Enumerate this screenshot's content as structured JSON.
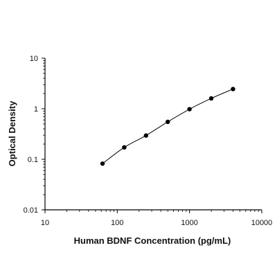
{
  "chart_data": {
    "type": "scatter",
    "title": "",
    "xlabel": "Human BDNF Concentration (pg/mL)",
    "ylabel": "Optical Density",
    "xscale": "log",
    "yscale": "log",
    "xlim": [
      10,
      10000
    ],
    "ylim": [
      0.01,
      10
    ],
    "x_ticks": [
      10,
      100,
      1000,
      10000
    ],
    "x_tick_labels": [
      "10",
      "100",
      "1000",
      "10000"
    ],
    "y_ticks": [
      0.01,
      0.1,
      1,
      10
    ],
    "y_tick_labels": [
      "0.01",
      "0.1",
      "1",
      "10"
    ],
    "grid": false,
    "legend": "none",
    "colors": {
      "points": "#000000",
      "curve": "#000000",
      "axes": "#000000",
      "background": "#ffffff"
    },
    "series": [
      {
        "x": [
          62.5,
          125,
          250,
          500,
          1000,
          2000,
          4000
        ],
        "y": [
          0.082,
          0.172,
          0.295,
          0.55,
          0.98,
          1.6,
          2.45
        ],
        "markers": true,
        "fit_curve": true
      }
    ]
  }
}
